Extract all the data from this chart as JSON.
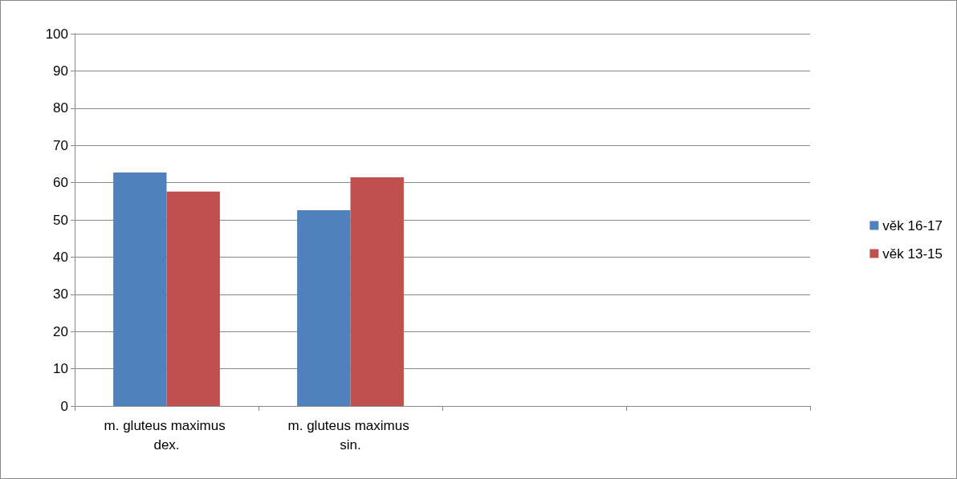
{
  "chart_data": {
    "type": "bar",
    "categories": [
      "m. gluteus maximus dex.",
      "m. gluteus maximus sin.",
      null,
      null
    ],
    "series": [
      {
        "name": "věk 16-17",
        "color": "#4f81bd",
        "values": [
          62.7,
          52.6,
          null,
          null
        ]
      },
      {
        "name": "věk 13-15",
        "color": "#c0504d",
        "values": [
          57.6,
          61.4,
          null,
          null
        ]
      }
    ],
    "ylim": [
      0,
      100
    ],
    "yticks": [
      0,
      10,
      20,
      30,
      40,
      50,
      60,
      70,
      80,
      90,
      100
    ],
    "grid": "y",
    "legend": "right"
  }
}
